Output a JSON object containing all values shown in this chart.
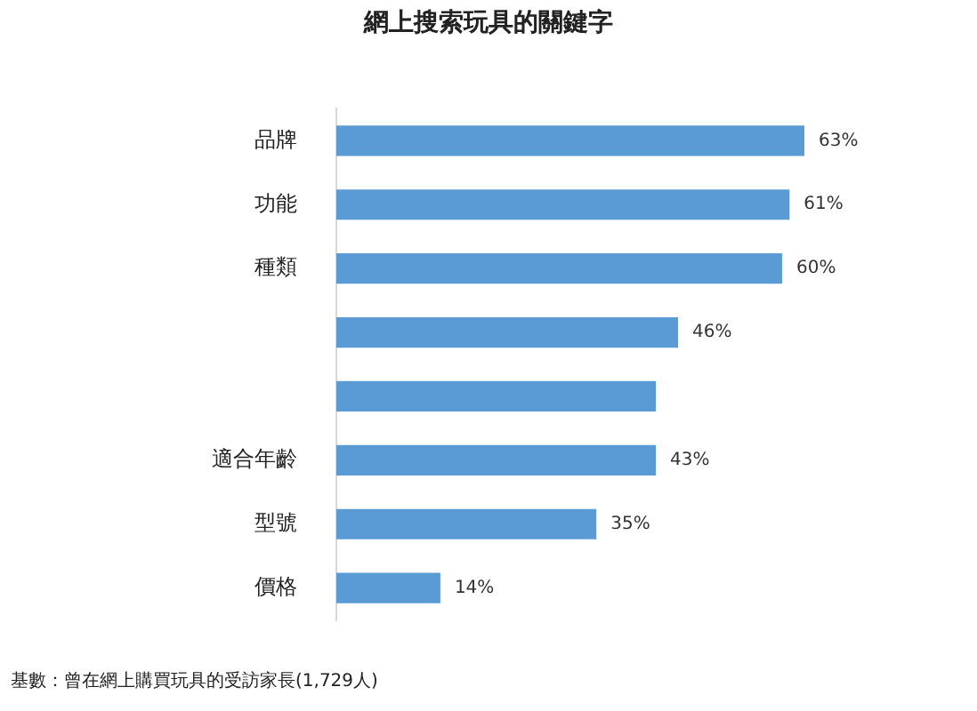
{
  "chart_data": {
    "type": "bar",
    "orientation": "horizontal",
    "title": "網上搜索玩具的關鍵字",
    "categories": [
      "品牌",
      "功能",
      "種類",
      null,
      null,
      "適合年齡",
      "型號",
      "價格"
    ],
    "values": [
      63,
      61,
      60,
      46,
      43,
      43,
      35,
      14
    ],
    "value_labels": [
      "63%",
      "61%",
      "60%",
      "46%",
      null,
      "43%",
      "35%",
      "14%"
    ],
    "color": "#5b9bd5",
    "annotations": [
      "基數：曾在網上購買玩具的受訪家長(1,729人)"
    ]
  }
}
